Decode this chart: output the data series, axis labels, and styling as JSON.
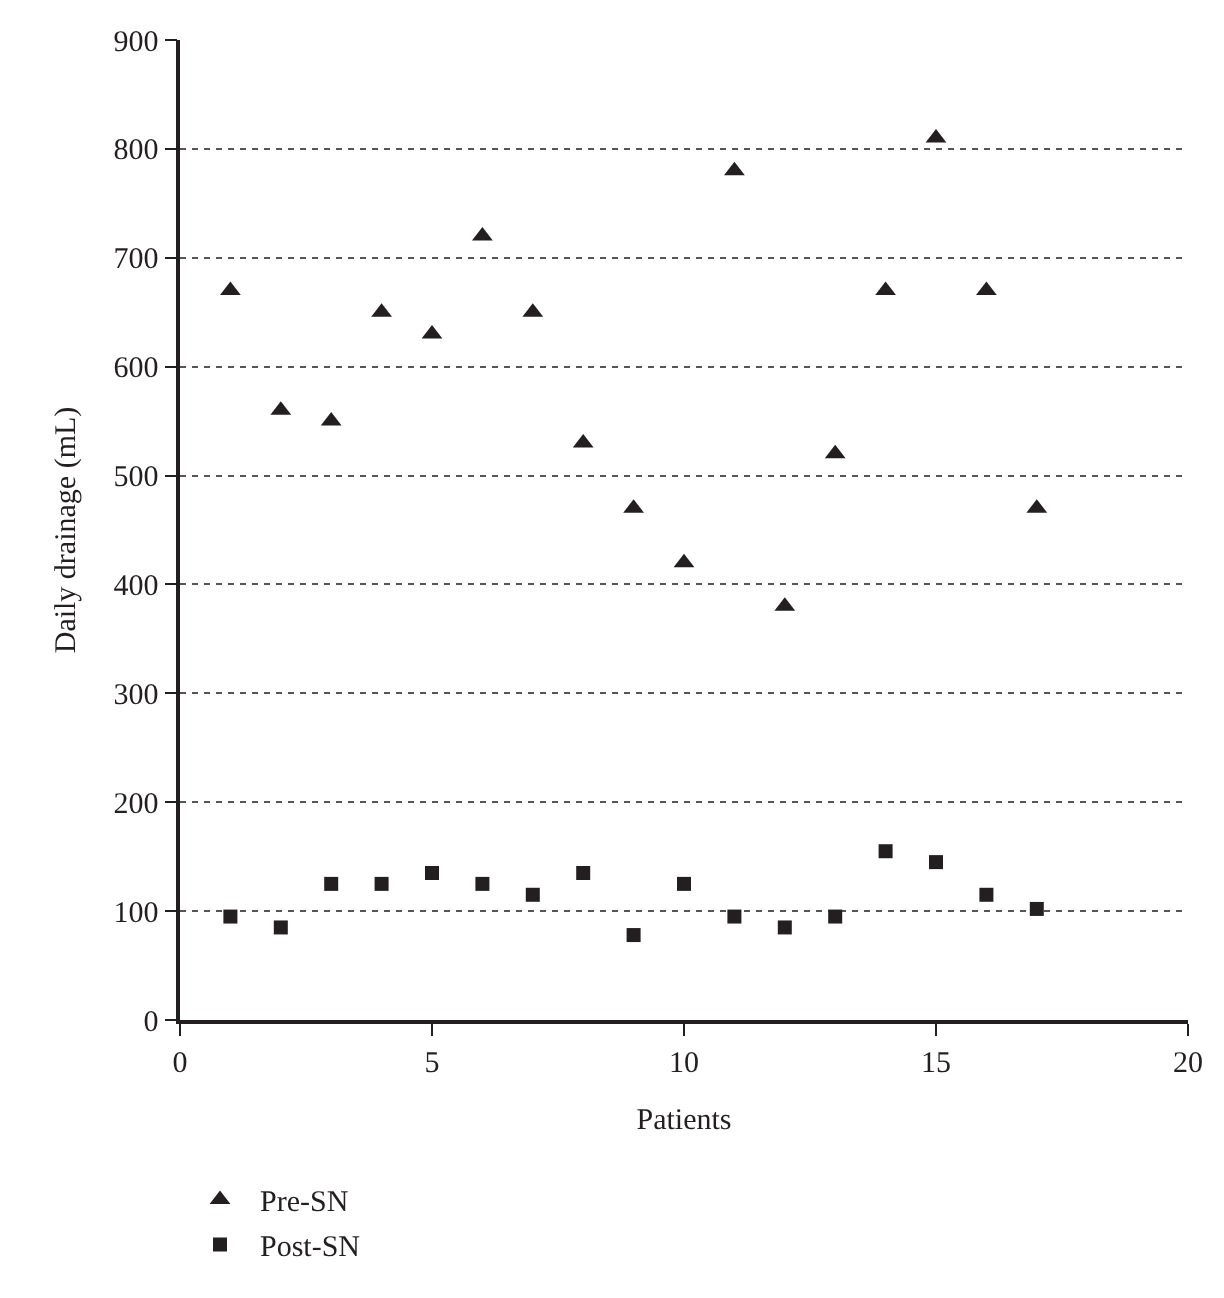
{
  "chart_data": {
    "type": "scatter",
    "xlabel": "Patients",
    "ylabel": "Daily drainage (mL)",
    "x": [
      1,
      2,
      3,
      4,
      5,
      6,
      7,
      8,
      9,
      10,
      11,
      12,
      13,
      14,
      15,
      16,
      17
    ],
    "series": [
      {
        "name": "Pre-SN",
        "color": "#231f20",
        "marker": "triangle",
        "values": [
          670,
          560,
          550,
          650,
          630,
          720,
          650,
          530,
          470,
          420,
          780,
          380,
          520,
          670,
          810,
          670,
          470
        ]
      },
      {
        "name": "Post-SN",
        "color": "#231f20",
        "marker": "square",
        "values": [
          95,
          85,
          125,
          125,
          135,
          125,
          115,
          135,
          78,
          125,
          95,
          85,
          95,
          155,
          145,
          115,
          102
        ]
      }
    ],
    "xlim": [
      0,
      20
    ],
    "xticks": [
      0,
      5,
      10,
      15,
      20
    ],
    "ylim": [
      0,
      900
    ],
    "yticks": [
      0,
      100,
      200,
      300,
      400,
      500,
      600,
      700,
      800,
      900
    ],
    "grid": "y",
    "legend": "bottom left"
  }
}
